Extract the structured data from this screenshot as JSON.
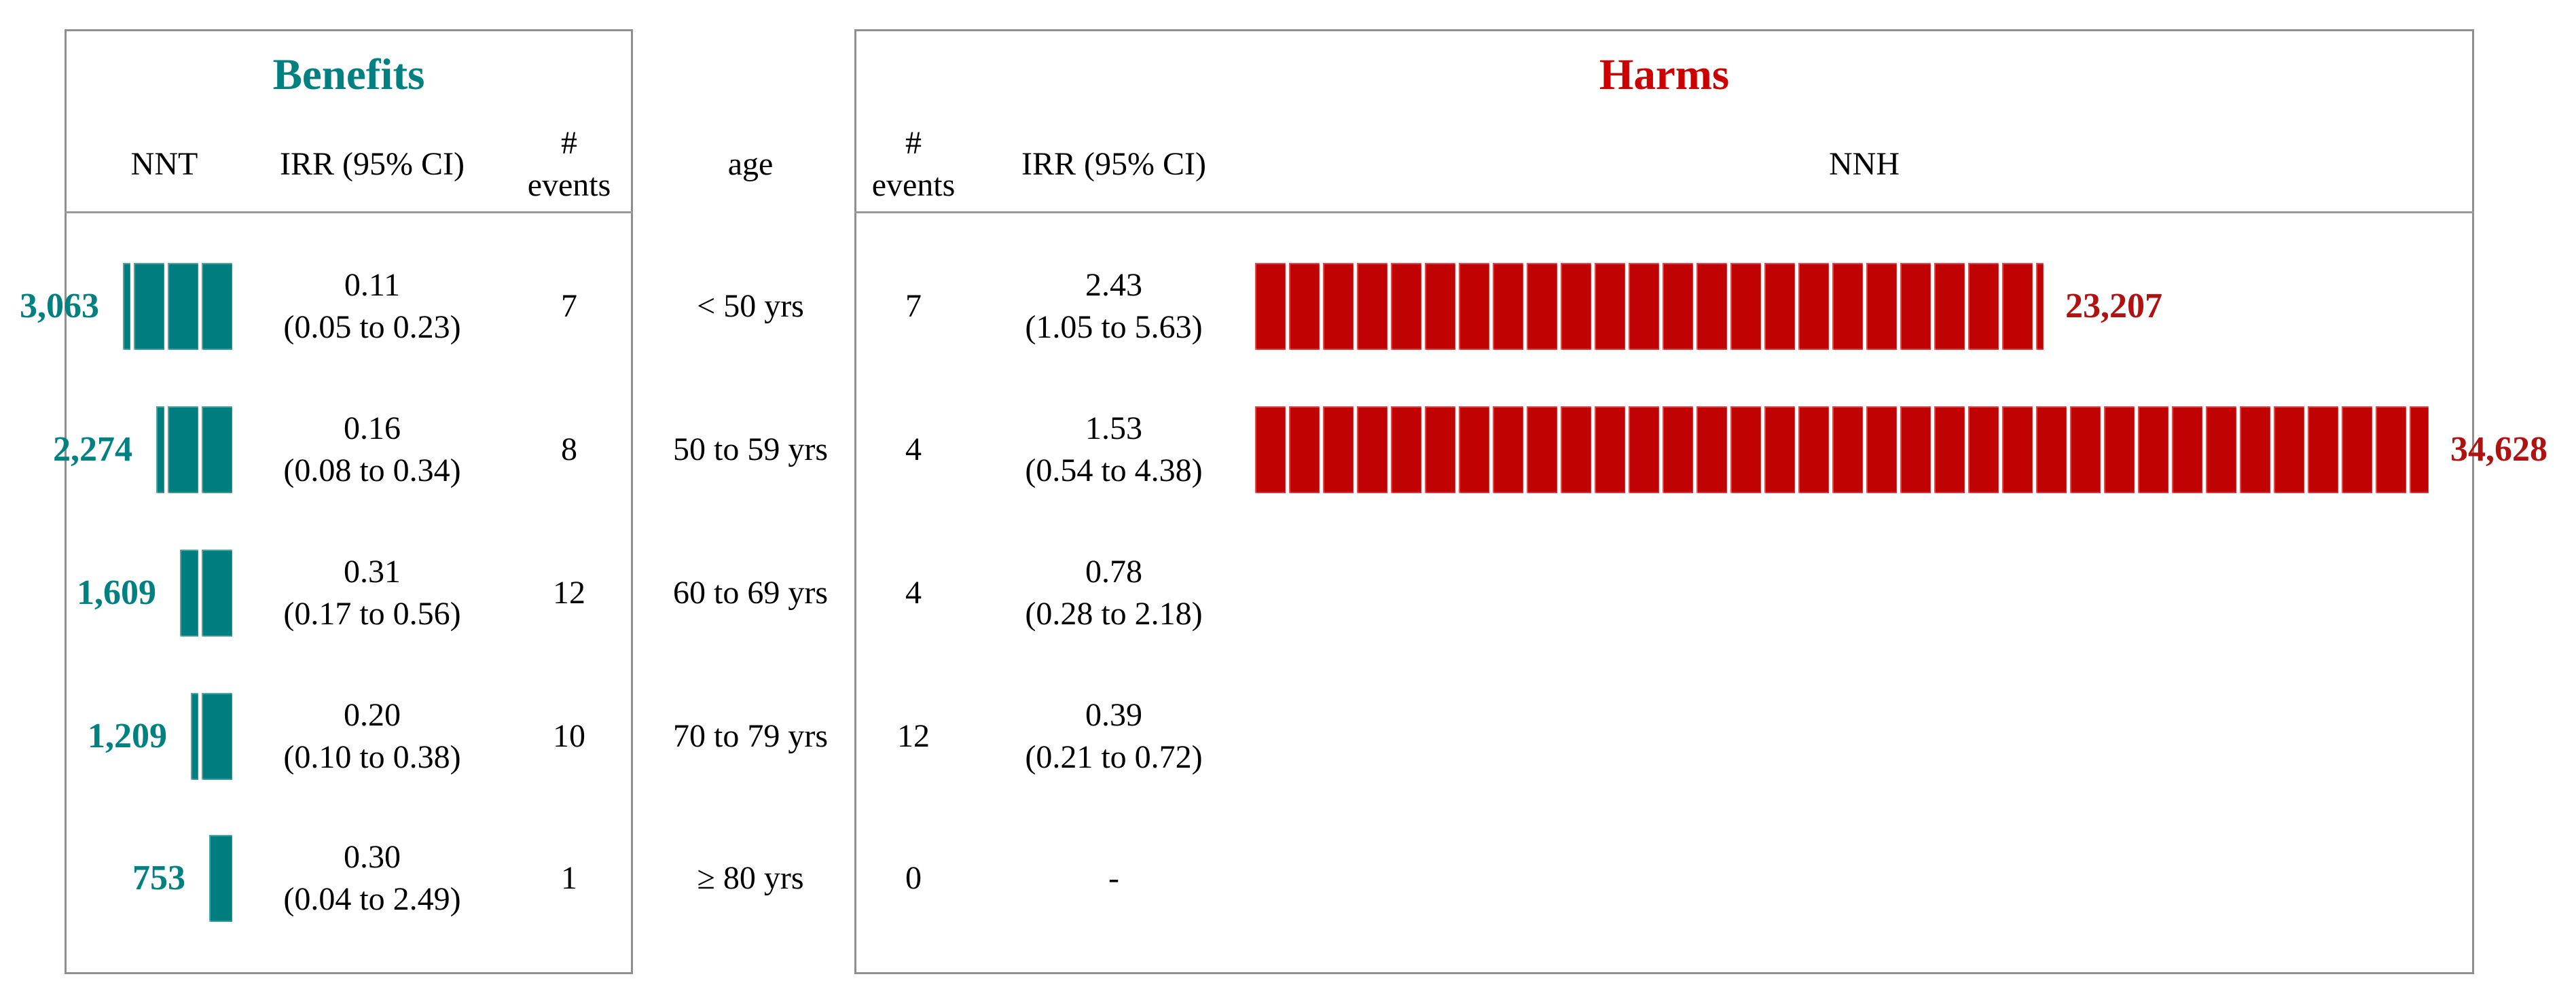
{
  "figure": {
    "benefits": {
      "title": "Benefits",
      "columns": {
        "nnt": "NNT",
        "irr": "IRR (95% CI)",
        "events_line1": "#",
        "events_line2": "events"
      }
    },
    "age_header": "age",
    "harms": {
      "title": "Harms",
      "columns": {
        "events_line1": "#",
        "events_line2": "events",
        "irr": "IRR (95% CI)",
        "nnh": "NNH"
      }
    }
  },
  "rows": [
    {
      "age": "< 50 yrs",
      "benefit": {
        "nnt": 3063,
        "nnt_label": "3,063",
        "irr": "0.11",
        "ci": "(0.05 to 0.23)",
        "events": "7"
      },
      "harm": {
        "events": "7",
        "irr": "2.43",
        "ci": "(1.05 to 5.63)",
        "nnh": 23207,
        "nnh_label": "23,207"
      }
    },
    {
      "age": "50 to 59 yrs",
      "benefit": {
        "nnt": 2274,
        "nnt_label": "2,274",
        "irr": "0.16",
        "ci": "(0.08 to 0.34)",
        "events": "8"
      },
      "harm": {
        "events": "4",
        "irr": "1.53",
        "ci": "(0.54 to 4.38)",
        "nnh": 34628,
        "nnh_label": "34,628"
      }
    },
    {
      "age": "60 to 69 yrs",
      "benefit": {
        "nnt": 1609,
        "nnt_label": "1,609",
        "irr": "0.31",
        "ci": "(0.17 to 0.56)",
        "events": "12"
      },
      "harm": {
        "events": "4",
        "irr": "0.78",
        "ci": "(0.28 to 2.18)",
        "nnh": null,
        "nnh_label": null
      }
    },
    {
      "age": "70 to 79 yrs",
      "benefit": {
        "nnt": 1209,
        "nnt_label": "1,209",
        "irr": "0.20",
        "ci": "(0.10 to 0.38)",
        "events": "10"
      },
      "harm": {
        "events": "12",
        "irr": "0.39",
        "ci": "(0.21 to 0.72)",
        "nnh": null,
        "nnh_label": null
      }
    },
    {
      "age": "≥ 80 yrs",
      "benefit": {
        "nnt": 753,
        "nnt_label": "753",
        "irr": "0.30",
        "ci": "(0.04 to 2.49)",
        "events": "1"
      },
      "harm": {
        "events": "0",
        "irr": "-",
        "ci": null,
        "nnh": null,
        "nnh_label": null
      }
    }
  ],
  "colors": {
    "benefit_teal": "#008080",
    "benefit_bar": "#007d7e",
    "harm_bar": "#c00202",
    "harm_label": "#b01111",
    "harm_title": "#cc0000",
    "border_gray": "#8f8f8f",
    "text_black": "#000000"
  },
  "chart_data": {
    "type": "bar",
    "subtype": "benefit-harm pictogram (segmented bars, 1 segment = 1,000 persons)",
    "unit_per_segment": 1000,
    "categories": [
      "< 50 yrs",
      "50 to 59 yrs",
      "60 to 69 yrs",
      "70 to 79 yrs",
      "≥ 80 yrs"
    ],
    "series": [
      {
        "name": "NNT",
        "panel": "Benefits",
        "values": [
          3063,
          2274,
          1609,
          1209,
          753
        ]
      },
      {
        "name": "Benefit IRR",
        "panel": "Benefits",
        "values": [
          0.11,
          0.16,
          0.31,
          0.2,
          0.3
        ]
      },
      {
        "name": "Benefit IRR 95% CI",
        "panel": "Benefits",
        "values": [
          "0.05 to 0.23",
          "0.08 to 0.34",
          "0.17 to 0.56",
          "0.10 to 0.38",
          "0.04 to 2.49"
        ]
      },
      {
        "name": "Benefit # events",
        "panel": "Benefits",
        "values": [
          7,
          8,
          12,
          10,
          1
        ]
      },
      {
        "name": "Harm # events",
        "panel": "Harms",
        "values": [
          7,
          4,
          4,
          12,
          0
        ]
      },
      {
        "name": "Harm IRR",
        "panel": "Harms",
        "values": [
          2.43,
          1.53,
          0.78,
          0.39,
          null
        ]
      },
      {
        "name": "Harm IRR 95% CI",
        "panel": "Harms",
        "values": [
          "1.05 to 5.63",
          "0.54 to 4.38",
          "0.28 to 2.18",
          "0.21 to 0.72",
          null
        ]
      },
      {
        "name": "NNH",
        "panel": "Harms",
        "values": [
          23207,
          34628,
          null,
          null,
          null
        ]
      }
    ],
    "panels": [
      "Benefits",
      "Harms"
    ],
    "bar_colors": {
      "Benefits": "#007d7e",
      "Harms": "#c00202"
    },
    "grid": false,
    "legend_position": "none"
  }
}
